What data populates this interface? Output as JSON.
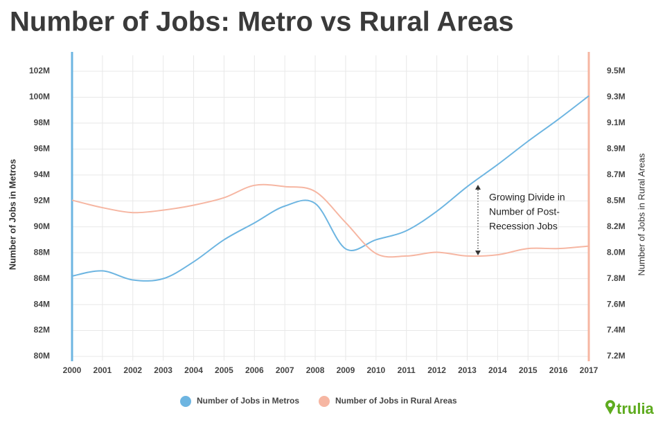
{
  "chart_data": {
    "type": "line",
    "title": "Number of Jobs: Metro vs Rural Areas",
    "ylabel": "Number of Jobs in Metros",
    "y2label": "Number of Jobs in Rural Areas",
    "categories": [
      "2000",
      "2001",
      "2002",
      "2003",
      "2004",
      "2005",
      "2006",
      "2007",
      "2008",
      "2009",
      "2010",
      "2011",
      "2012",
      "2013",
      "2014",
      "2015",
      "2016",
      "2017"
    ],
    "series": [
      {
        "name": "Number of Jobs in Metros",
        "color": "#6db5e1",
        "values": [
          86.2,
          86.6,
          85.9,
          86.0,
          87.3,
          89.0,
          90.3,
          91.6,
          91.8,
          88.3,
          89.0,
          89.7,
          91.2,
          93.1,
          94.8,
          96.6,
          98.3,
          100.1
        ]
      },
      {
        "name": "Number of Jobs in Rural Areas",
        "color": "#f6b6a2",
        "axis": "y2",
        "values": [
          8.46,
          8.4,
          8.36,
          8.38,
          8.42,
          8.48,
          8.58,
          8.57,
          8.53,
          8.28,
          8.03,
          8.01,
          8.04,
          8.01,
          8.02,
          8.07,
          8.07,
          8.09
        ]
      }
    ],
    "ylim": [
      80,
      102
    ],
    "yticks": [
      {
        "value": 80,
        "label": "80M"
      },
      {
        "value": 82,
        "label": "82M"
      },
      {
        "value": 84,
        "label": "84M"
      },
      {
        "value": 86,
        "label": "86M"
      },
      {
        "value": 88,
        "label": "88M"
      },
      {
        "value": 90,
        "label": "90M"
      },
      {
        "value": 92,
        "label": "92M"
      },
      {
        "value": 94,
        "label": "94M"
      },
      {
        "value": 96,
        "label": "96M"
      },
      {
        "value": 98,
        "label": "98M"
      },
      {
        "value": 100,
        "label": "100M"
      },
      {
        "value": 102,
        "label": "102M"
      }
    ],
    "y2lim": [
      7.2,
      9.5
    ],
    "y2ticks": [
      {
        "value": 7.2,
        "label": "7.2M"
      },
      {
        "value": 7.409,
        "label": "7.4M"
      },
      {
        "value": 7.618,
        "label": "7.6M"
      },
      {
        "value": 7.827,
        "label": "7.8M"
      },
      {
        "value": 8.036,
        "label": "8.0M"
      },
      {
        "value": 8.245,
        "label": "8.2M"
      },
      {
        "value": 8.455,
        "label": "8.5M"
      },
      {
        "value": 8.664,
        "label": "8.7M"
      },
      {
        "value": 8.873,
        "label": "8.9M"
      },
      {
        "value": 9.082,
        "label": "9.1M"
      },
      {
        "value": 9.291,
        "label": "9.3M"
      },
      {
        "value": 9.5,
        "label": "9.5M"
      }
    ],
    "grid": true,
    "annotation": [
      "Growing Divide in",
      "Number of Post-",
      "Recession Jobs"
    ],
    "logo": "trulia"
  }
}
